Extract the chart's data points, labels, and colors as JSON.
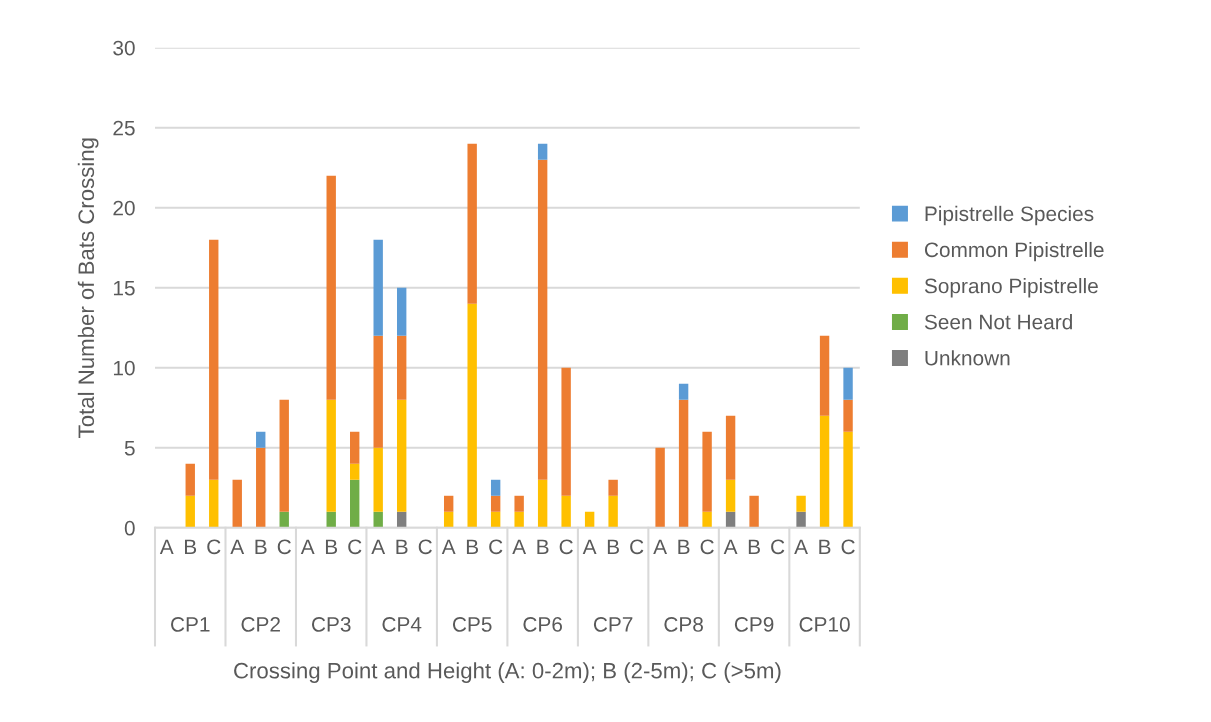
{
  "chart_data": {
    "type": "bar",
    "stacked": true,
    "categories": [
      "A",
      "B",
      "C",
      "A",
      "B",
      "C",
      "A",
      "B",
      "C",
      "A",
      "B",
      "C",
      "A",
      "B",
      "C",
      "A",
      "B",
      "C",
      "A",
      "B",
      "C",
      "A",
      "B",
      "C",
      "A",
      "B",
      "C",
      "A",
      "B",
      "C"
    ],
    "annotations": [
      "CP1",
      "CP2",
      "CP3",
      "CP4",
      "CP5",
      "CP6",
      "CP7",
      "CP8",
      "CP9",
      "CP10"
    ],
    "xlabel": "Crossing Point and Height (A: 0-2m); B (2-5m); C (>5m)",
    "ylabel": "Total Number of Bats Crossing",
    "ylim": [
      0,
      30
    ],
    "yticks": [
      0,
      5,
      10,
      15,
      20,
      25,
      30
    ],
    "grid": "y",
    "legend": "right",
    "series": [
      {
        "name": "Unknown",
        "color": "#7f7f7f",
        "values": [
          0,
          0,
          0,
          0,
          0,
          0,
          0,
          0,
          0,
          0,
          1,
          0,
          0,
          0,
          0,
          0,
          0,
          0,
          0,
          0,
          0,
          0,
          0,
          0,
          1,
          0,
          0,
          1,
          0,
          0
        ]
      },
      {
        "name": "Seen Not Heard",
        "color": "#70ad47",
        "values": [
          0,
          0,
          0,
          0,
          0,
          1,
          0,
          1,
          3,
          1,
          0,
          0,
          0,
          0,
          0,
          0,
          0,
          0,
          0,
          0,
          0,
          0,
          0,
          0,
          0,
          0,
          0,
          0,
          0,
          0
        ]
      },
      {
        "name": "Soprano Pipistrelle",
        "color": "#ffc000",
        "values": [
          0,
          2,
          3,
          0,
          0,
          0,
          0,
          7,
          1,
          4,
          7,
          0,
          1,
          14,
          1,
          1,
          3,
          2,
          1,
          2,
          0,
          0,
          0,
          1,
          2,
          0,
          0,
          1,
          7,
          6
        ]
      },
      {
        "name": "Common Pipistrelle",
        "color": "#ed7d31",
        "values": [
          0,
          2,
          15,
          3,
          5,
          7,
          0,
          14,
          2,
          7,
          4,
          0,
          1,
          10,
          1,
          1,
          20,
          8,
          0,
          1,
          0,
          5,
          8,
          5,
          4,
          2,
          0,
          0,
          5,
          2
        ]
      },
      {
        "name": "Pipistrelle Species",
        "color": "#5b9bd5",
        "values": [
          0,
          0,
          0,
          0,
          1,
          0,
          0,
          0,
          0,
          6,
          3,
          0,
          0,
          0,
          1,
          0,
          1,
          0,
          0,
          0,
          0,
          0,
          1,
          0,
          0,
          0,
          0,
          0,
          0,
          2
        ]
      }
    ]
  }
}
